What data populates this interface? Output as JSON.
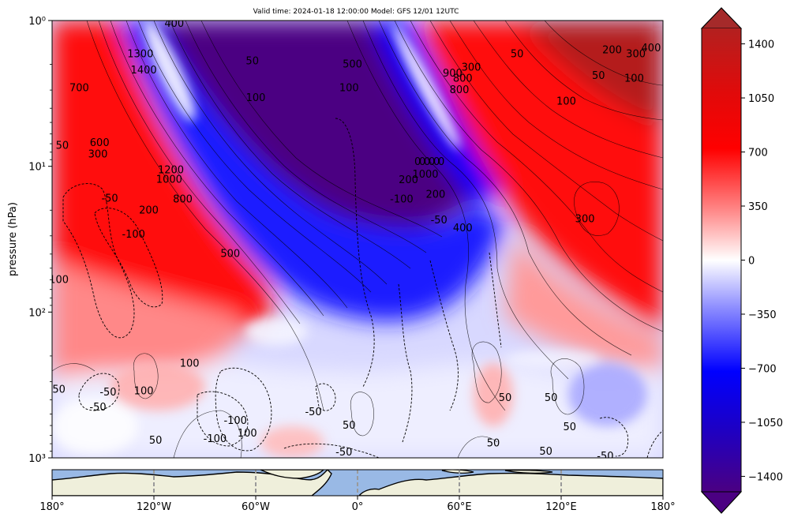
{
  "chart_data": {
    "type": "heatmap",
    "title": "Valid time: 2024-01-18 12:00:00 Model: GFS 12/01 12UTC",
    "xlabel": "",
    "ylabel": "pressure (hPa)",
    "y_scale": "log",
    "y_inverted": true,
    "ylim": [
      1000,
      1
    ],
    "y_ticks": [
      {
        "value": 1,
        "label": "10⁰"
      },
      {
        "value": 10,
        "label": "10¹"
      },
      {
        "value": 100,
        "label": "10²"
      },
      {
        "value": 1000,
        "label": "10³"
      }
    ],
    "xlim": [
      -180,
      180
    ],
    "x_ticks": [
      {
        "value": -180,
        "label": "180°"
      },
      {
        "value": -120,
        "label": "120°W"
      },
      {
        "value": -60,
        "label": "60°W"
      },
      {
        "value": 0,
        "label": "0°"
      },
      {
        "value": 60,
        "label": "60°E"
      },
      {
        "value": 120,
        "label": "120°E"
      },
      {
        "value": 180,
        "label": "180°"
      }
    ],
    "colorbar": {
      "colormap": "seismic-diverging",
      "range": [
        -1500,
        1500
      ],
      "ticks": [
        1400,
        1050,
        700,
        350,
        0,
        -350,
        -700,
        -1050,
        -1400
      ],
      "tick_labels": [
        "1400",
        "1050",
        "700",
        "350",
        "0",
        "−350",
        "−700",
        "−1050",
        "−1400"
      ],
      "extend": "both",
      "colors": {
        "max": "#a52a2a",
        "high": "#ff0000",
        "zero": "#ffffff",
        "low": "#0000ff",
        "min": "#4b0082"
      }
    },
    "contour_labels": [
      {
        "lon": -108,
        "p": 1.05,
        "text": "400"
      },
      {
        "lon": -128,
        "p": 1.7,
        "text": "1300"
      },
      {
        "lon": -126,
        "p": 2.2,
        "text": "1400"
      },
      {
        "lon": -164,
        "p": 2.9,
        "text": "700"
      },
      {
        "lon": -62,
        "p": 1.9,
        "text": "50"
      },
      {
        "lon": -3,
        "p": 2.0,
        "text": "500"
      },
      {
        "lon": -5,
        "p": 2.9,
        "text": "100"
      },
      {
        "lon": -60,
        "p": 3.4,
        "text": "100"
      },
      {
        "lon": -174,
        "p": 7.2,
        "text": "50"
      },
      {
        "lon": -152,
        "p": 6.9,
        "text": "600"
      },
      {
        "lon": -153,
        "p": 8.3,
        "text": "300"
      },
      {
        "lon": -110,
        "p": 10.6,
        "text": "1200"
      },
      {
        "lon": -111,
        "p": 12.3,
        "text": "1000"
      },
      {
        "lon": -103,
        "p": 16.8,
        "text": "800"
      },
      {
        "lon": -146,
        "p": 16.6,
        "text": "-50"
      },
      {
        "lon": -123,
        "p": 20.0,
        "text": "200"
      },
      {
        "lon": -132,
        "p": 29.3,
        "text": "-100"
      },
      {
        "lon": -75,
        "p": 39.8,
        "text": "500"
      },
      {
        "lon": 30,
        "p": 12.4,
        "text": "200"
      },
      {
        "lon": 40,
        "p": 11.4,
        "text": "1000"
      },
      {
        "lon": 26,
        "p": 16.9,
        "text": "-100"
      },
      {
        "lon": 46,
        "p": 15.6,
        "text": "200"
      },
      {
        "lon": 48,
        "p": 23.5,
        "text": "-50"
      },
      {
        "lon": 62,
        "p": 26.5,
        "text": "400"
      },
      {
        "lon": 94,
        "p": 1.7,
        "text": "50"
      },
      {
        "lon": 150,
        "p": 1.6,
        "text": "200"
      },
      {
        "lon": 164,
        "p": 1.7,
        "text": "300"
      },
      {
        "lon": 173,
        "p": 1.55,
        "text": "400"
      },
      {
        "lon": 142,
        "p": 2.4,
        "text": "50"
      },
      {
        "lon": 163,
        "p": 2.5,
        "text": "100"
      },
      {
        "lon": 56,
        "p": 2.3,
        "text": "900"
      },
      {
        "lon": 67,
        "p": 2.1,
        "text": "300"
      },
      {
        "lon": 62,
        "p": 2.5,
        "text": "800"
      },
      {
        "lon": 60,
        "p": 3.0,
        "text": "800"
      },
      {
        "lon": 123,
        "p": 3.6,
        "text": "100"
      },
      {
        "lon": 134,
        "p": 23.0,
        "text": "300"
      },
      {
        "lon": -176,
        "p": 60.0,
        "text": "100"
      },
      {
        "lon": -176,
        "p": 340.0,
        "text": "50"
      },
      {
        "lon": -147,
        "p": 355.0,
        "text": "-50"
      },
      {
        "lon": -153,
        "p": 450.0,
        "text": "-50"
      },
      {
        "lon": -126,
        "p": 348.0,
        "text": "100"
      },
      {
        "lon": -99,
        "p": 225.0,
        "text": "100"
      },
      {
        "lon": -26,
        "p": 485.0,
        "text": "-50"
      },
      {
        "lon": -72,
        "p": 555.0,
        "text": "-100"
      },
      {
        "lon": -65,
        "p": 680.0,
        "text": "100"
      },
      {
        "lon": -84,
        "p": 740.0,
        "text": "-100"
      },
      {
        "lon": -119,
        "p": 760.0,
        "text": "50"
      },
      {
        "lon": -5,
        "p": 600.0,
        "text": "50"
      },
      {
        "lon": -8,
        "p": 915.0,
        "text": "-50"
      },
      {
        "lon": 87,
        "p": 387.0,
        "text": "50"
      },
      {
        "lon": 114,
        "p": 387.0,
        "text": "50"
      },
      {
        "lon": 125,
        "p": 615.0,
        "text": "50"
      },
      {
        "lon": 80,
        "p": 795.0,
        "text": "50"
      },
      {
        "lon": 111,
        "p": 905.0,
        "text": "50"
      },
      {
        "lon": 146,
        "p": 975.0,
        "text": "-50"
      }
    ]
  },
  "map_strip": {
    "xlim": [
      -180,
      180
    ],
    "ocean_color": "#99b9e5",
    "land_color": "#efefdb",
    "gridline_lons": [
      -120,
      -60,
      0,
      60,
      120
    ]
  }
}
